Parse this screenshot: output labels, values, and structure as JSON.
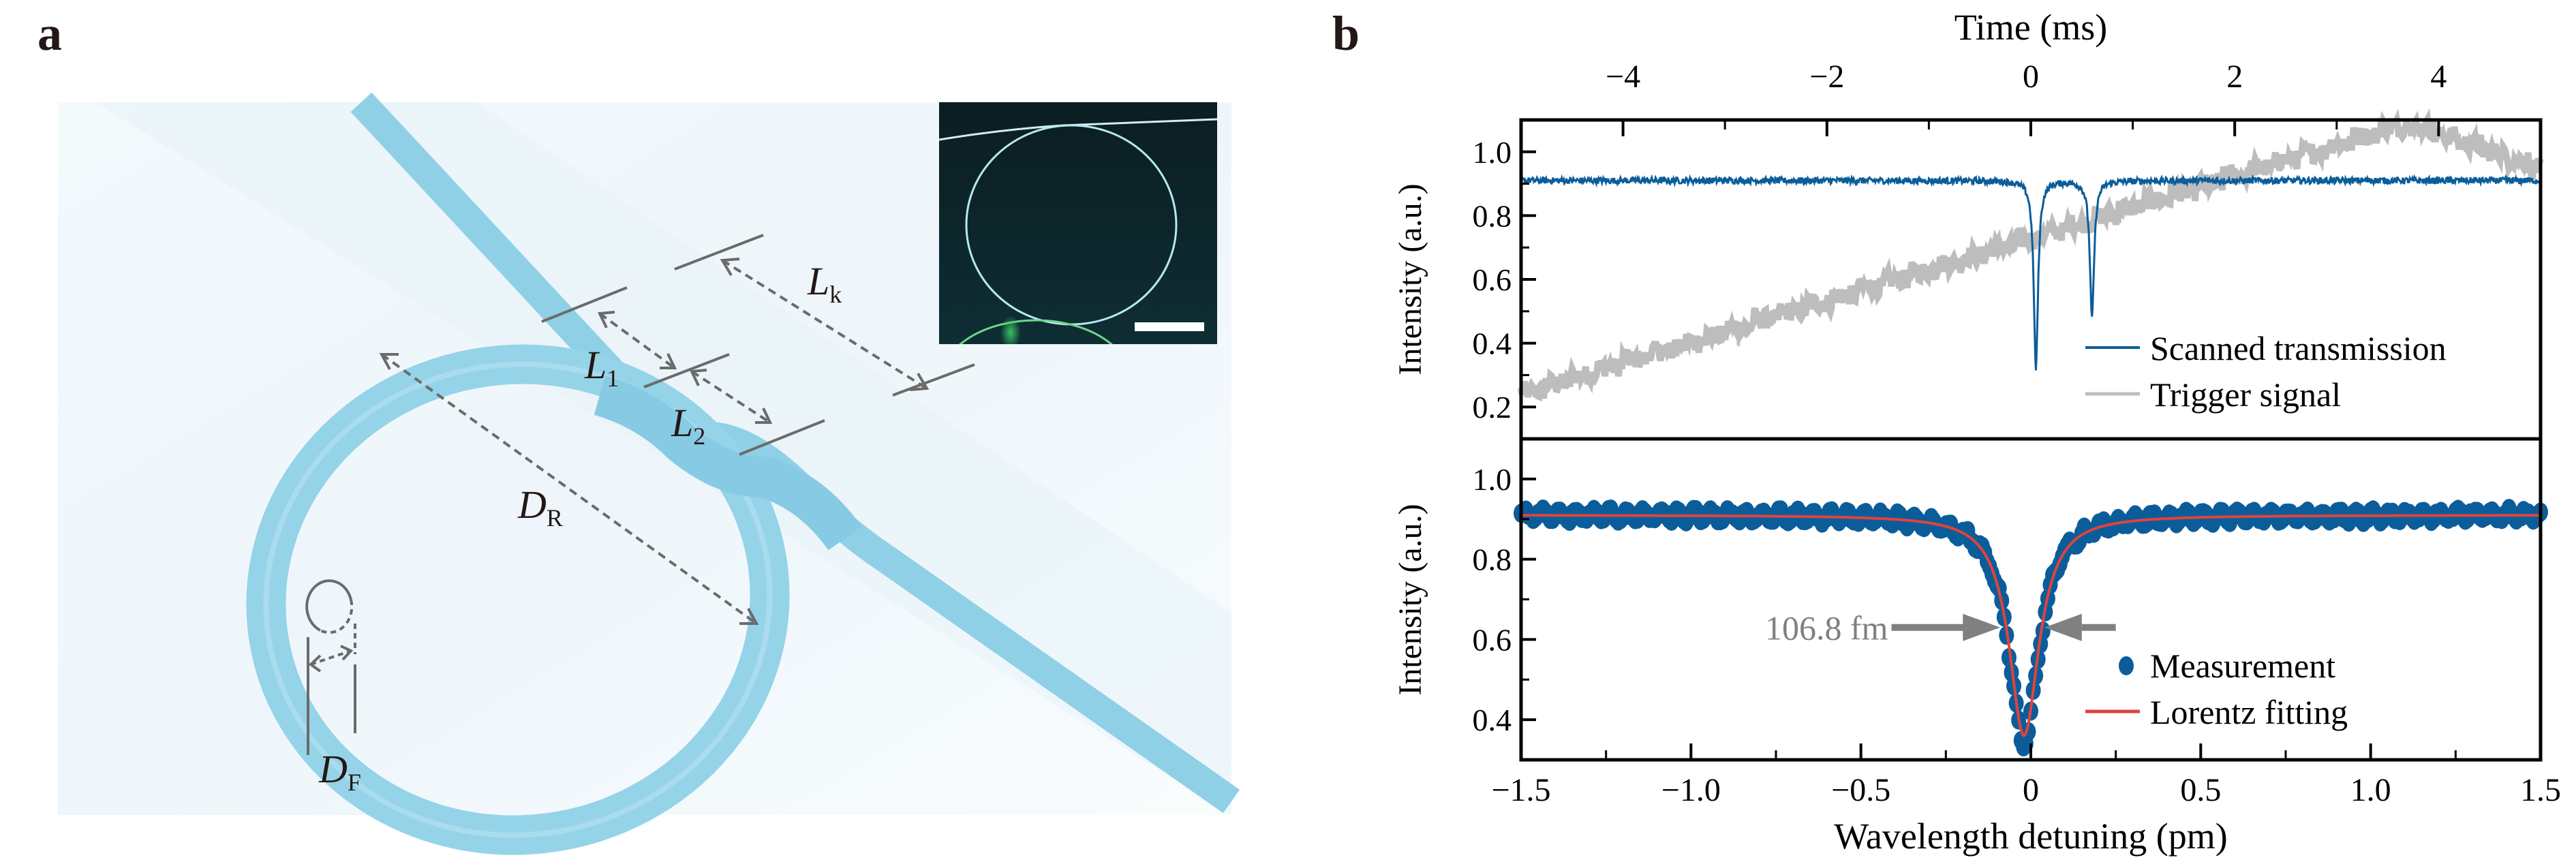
{
  "panel_a": {
    "label": "a",
    "annotations": {
      "L_k": {
        "main": "L",
        "sub": "k"
      },
      "L_1": {
        "main": "L",
        "sub": "1"
      },
      "L_2": {
        "main": "L",
        "sub": "2"
      },
      "D_R": {
        "main": "D",
        "sub": "R"
      },
      "D_F": {
        "main": "D",
        "sub": "F"
      }
    },
    "colors": {
      "fiber": "#8fd0e6",
      "annotation": "#6b6b6b",
      "inset_bg": "#0e2a2e",
      "inset_ring": "#9fe6e0"
    },
    "inset": {
      "description": "micrograph of fiber knot ring with scale bar"
    }
  },
  "panel_b": {
    "label": "b",
    "colors": {
      "transmission": "#0b5d9a",
      "trigger": "#bdbdbd",
      "measurement": "#0b5d9a",
      "fit": "#e0433c",
      "annotation": "#808080",
      "axis": "#000000"
    }
  },
  "chart_data": [
    {
      "type": "line",
      "title": "",
      "xlabel": "Time (ms)",
      "xlabel_position": "top",
      "ylabel": "Intensity (a.u.)",
      "xlim": [
        -5,
        5
      ],
      "ylim": [
        0.1,
        1.1
      ],
      "xticks": [
        -4,
        -2,
        0,
        2,
        4
      ],
      "xtick_labels": [
        "−4",
        "−2",
        "0",
        "2",
        "4"
      ],
      "yticks": [
        0.2,
        0.4,
        0.6,
        0.8,
        1.0
      ],
      "ytick_labels": [
        "0.2",
        "0.4",
        "0.6",
        "0.8",
        "1.0"
      ],
      "legend_position": "bottom-right",
      "series": [
        {
          "name": "Scanned transmission",
          "baseline": 0.91,
          "noise": 0.01,
          "dips": [
            {
              "x": 0.05,
              "min": 0.32
            },
            {
              "x": 0.6,
              "min": 0.48
            }
          ]
        },
        {
          "name": "Trigger signal",
          "x": [
            -5,
            3.7,
            5
          ],
          "y": [
            0.24,
            1.09,
            0.95
          ],
          "noise": 0.03
        }
      ]
    },
    {
      "type": "scatter",
      "xlabel": "Wavelength detuning (pm)",
      "ylabel": "Intensity (a.u.)",
      "xlim": [
        -1.5,
        1.5
      ],
      "ylim": [
        0.3,
        1.1
      ],
      "xticks": [
        -1.5,
        -1.0,
        -0.5,
        0,
        0.5,
        1.0,
        1.5
      ],
      "xtick_labels": [
        "−1.5",
        "−1.0",
        "−0.5",
        "0",
        "0.5",
        "1.0",
        "1.5"
      ],
      "yticks": [
        0.4,
        0.6,
        0.8,
        1.0
      ],
      "ytick_labels": [
        "0.4",
        "0.6",
        "0.8",
        "1.0"
      ],
      "legend_position": "bottom-right",
      "annotation": "106.8 fm",
      "series": [
        {
          "name": "Measurement",
          "lorentz_baseline": 0.91,
          "lorentz_min": 0.34,
          "center": -0.02,
          "fwhm_pm": 0.1068,
          "noise": 0.012
        },
        {
          "name": "Lorentz fitting",
          "lorentz_baseline": 0.91,
          "lorentz_min": 0.36,
          "center": -0.02,
          "fwhm_pm": 0.1068
        }
      ]
    }
  ]
}
